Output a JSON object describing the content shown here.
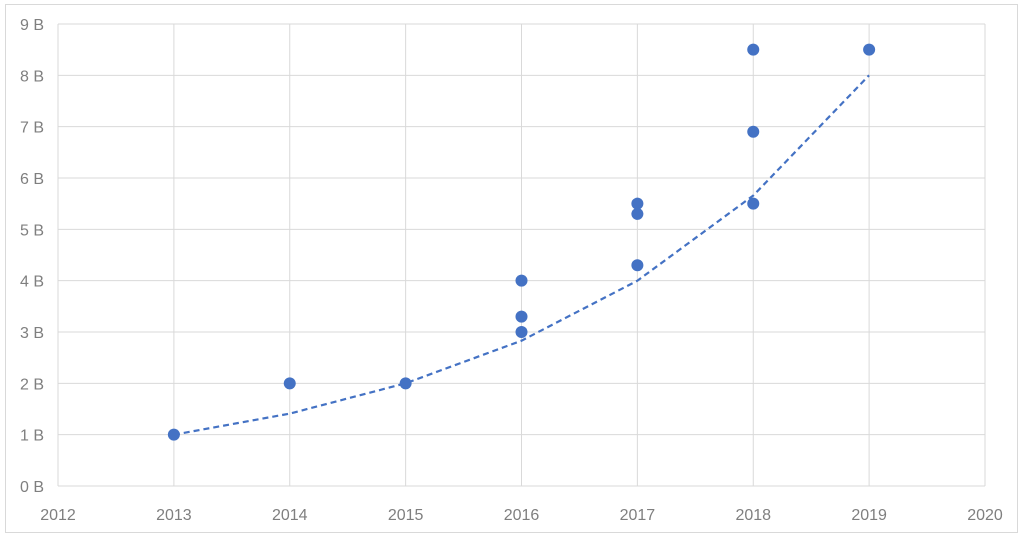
{
  "chart_data": {
    "type": "scatter",
    "title": "",
    "xlabel": "",
    "ylabel": "",
    "xlim": [
      2012,
      2020
    ],
    "ylim": [
      0,
      9
    ],
    "x_ticks": [
      2012,
      2013,
      2014,
      2015,
      2016,
      2017,
      2018,
      2019,
      2020
    ],
    "y_ticks": [
      0,
      1,
      2,
      3,
      4,
      5,
      6,
      7,
      8,
      9
    ],
    "x_tick_labels": [
      "2012",
      "2013",
      "2014",
      "2015",
      "2016",
      "2017",
      "2018",
      "2019",
      "2020"
    ],
    "y_tick_labels": [
      "0 B",
      "1 B",
      "2 B",
      "3 B",
      "4 B",
      "5 B",
      "6 B",
      "7 B",
      "8 B",
      "9 B"
    ],
    "grid": true,
    "legend": "none",
    "series": [
      {
        "points": [
          {
            "x": 2013,
            "y": 1.0
          },
          {
            "x": 2014,
            "y": 2.0
          },
          {
            "x": 2015,
            "y": 2.0
          },
          {
            "x": 2016,
            "y": 4.0
          },
          {
            "x": 2016,
            "y": 3.3
          },
          {
            "x": 2016,
            "y": 3.0
          },
          {
            "x": 2017,
            "y": 5.5
          },
          {
            "x": 2017,
            "y": 5.3
          },
          {
            "x": 2017,
            "y": 4.3
          },
          {
            "x": 2018,
            "y": 8.5
          },
          {
            "x": 2018,
            "y": 6.9
          },
          {
            "x": 2018,
            "y": 5.5
          },
          {
            "x": 2019,
            "y": 8.5
          }
        ]
      }
    ],
    "trendline": {
      "style": "dashed",
      "points": [
        {
          "x": 2013,
          "y": 1.0
        },
        {
          "x": 2014,
          "y": 1.41
        },
        {
          "x": 2015,
          "y": 2.0
        },
        {
          "x": 2016,
          "y": 2.83
        },
        {
          "x": 2017,
          "y": 4.0
        },
        {
          "x": 2018,
          "y": 5.66
        },
        {
          "x": 2019,
          "y": 8.0
        }
      ]
    },
    "colors": {
      "marker": "#4472c4",
      "trendline": "#4472c4",
      "grid": "#d9d9d9",
      "tick_text": "#7f7f7f"
    }
  }
}
